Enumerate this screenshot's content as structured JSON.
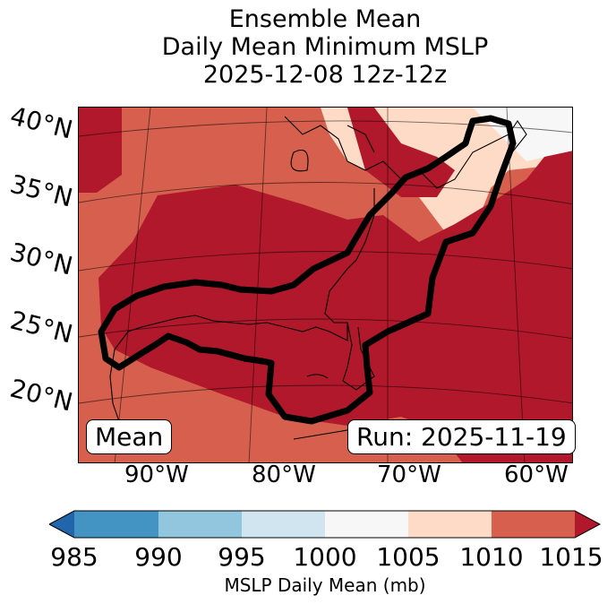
{
  "title": {
    "line1": "Ensemble Mean",
    "line2": "Daily Mean Minimum MSLP",
    "line3": "2025-12-08 12z-12z"
  },
  "map": {
    "lat_labels": [
      "40°N",
      "35°N",
      "30°N",
      "25°N",
      "20°N"
    ],
    "lon_labels": [
      "90°W",
      "80°W",
      "70°W",
      "60°W"
    ],
    "box_left": "Mean",
    "box_right": "Run: 2025-11-19"
  },
  "colorbar": {
    "ticks": [
      "985",
      "990",
      "995",
      "1000",
      "1005",
      "1010",
      "1015"
    ],
    "label": "MSLP Daily Mean (mb)",
    "colors": [
      "#2166ac",
      "#4393c3",
      "#92c5de",
      "#d1e5f0",
      "#f7f7f7",
      "#fddbc7",
      "#d6604d",
      "#b2182b"
    ]
  }
}
